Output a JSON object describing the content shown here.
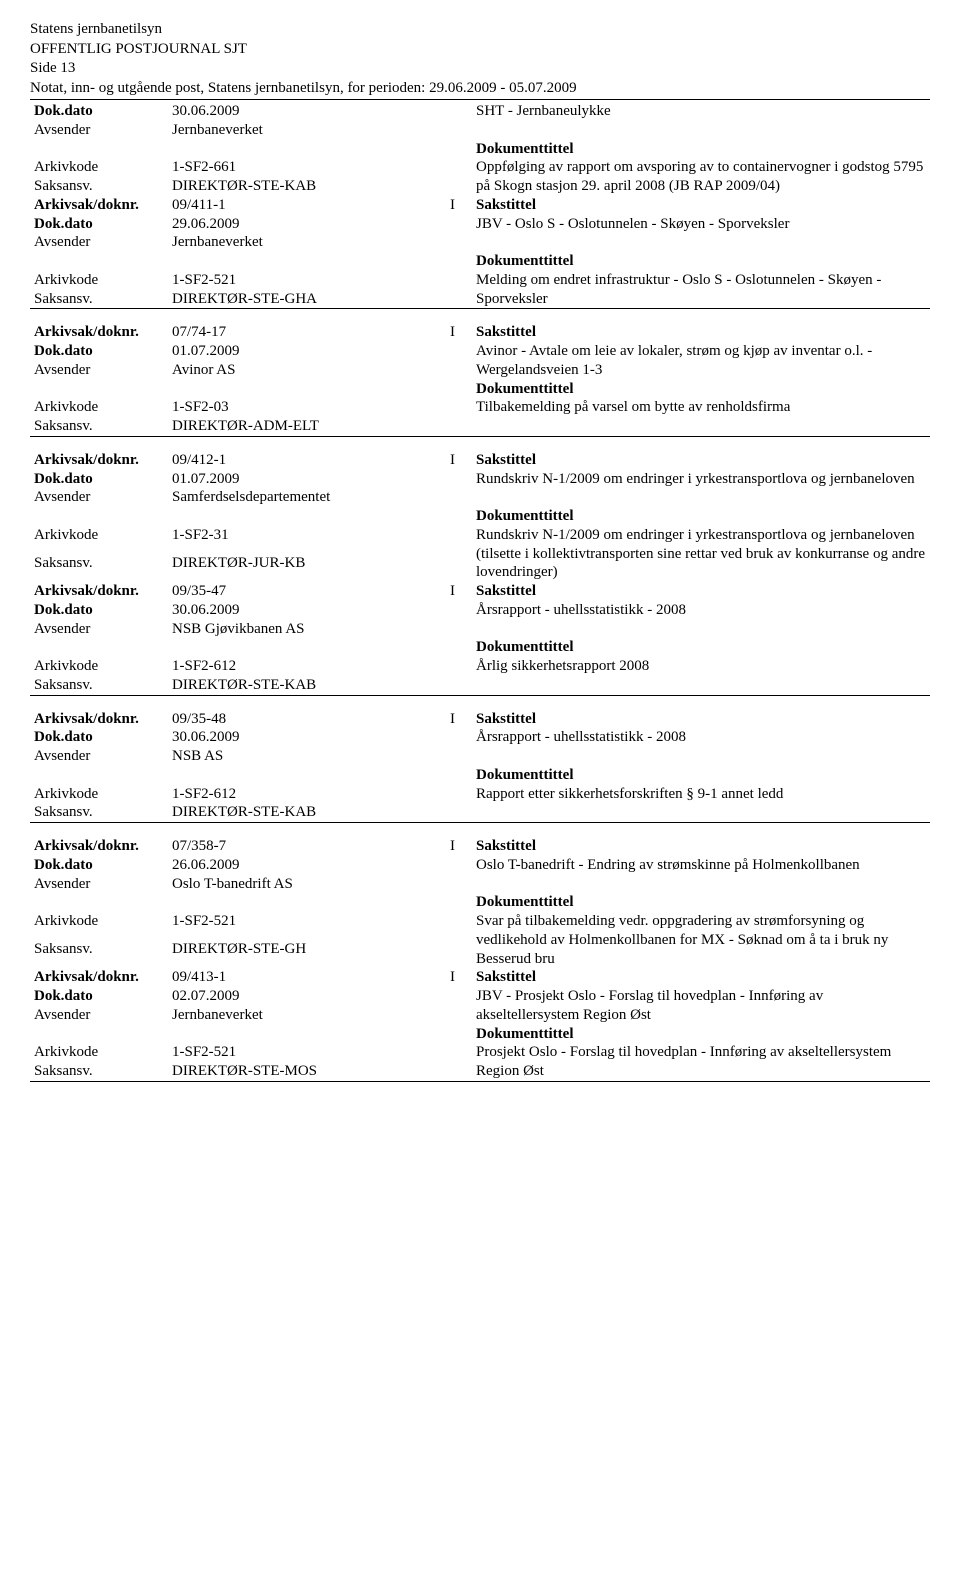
{
  "header": {
    "org": "Statens jernbanetilsyn",
    "title": "OFFENTLIG POSTJOURNAL SJT",
    "page": "Side 13",
    "period": "Notat, inn- og utgående post, Statens jernbanetilsyn, for perioden: 29.06.2009 - 05.07.2009"
  },
  "labels": {
    "dokdato": "Dok.dato",
    "avsender": "Avsender",
    "arkivkode": "Arkivkode",
    "saksansv": "Saksansv.",
    "arkivsak": "Arkivsak/doknr.",
    "sakstittel": "Sakstittel",
    "dokumenttittel": "Dokumenttittel"
  },
  "groups": [
    {
      "top": {
        "dokdato": "30.06.2009",
        "avsender": "Jernbaneverket",
        "arkivkode": "1-SF2-661",
        "saksansv": "DIREKTØR-STE-KAB",
        "saks_text": "SHT - Jernbaneulykke",
        "dok_text": "Oppfølging av rapport om avsporing av to containervogner i godstog 5795 på Skogn stasjon 29. april 2008 (JB RAP 2009/04)"
      },
      "bottom": {
        "arkivsak": "09/411-1",
        "io": "I",
        "dokdato": "29.06.2009",
        "avsender": "Jernbaneverket",
        "arkivkode": "1-SF2-521",
        "saksansv": "DIREKTØR-STE-GHA",
        "saks_text": "JBV - Oslo S - Oslotunnelen - Skøyen - Sporveksler",
        "dok_text": "Melding om endret infrastruktur - Oslo S - Oslotunnelen - Skøyen - Sporveksler"
      }
    },
    {
      "top": {
        "arkivsak": "07/74-17",
        "io": "I",
        "dokdato": "01.07.2009",
        "avsender": "Avinor AS",
        "arkivkode": "1-SF2-03",
        "saksansv": "DIREKTØR-ADM-ELT",
        "saks_text": "Avinor - Avtale om leie av lokaler, strøm og kjøp av inventar o.l. - Wergelandsveien 1-3",
        "dok_text": "Tilbakemelding på varsel om bytte av renholdsfirma"
      }
    },
    {
      "top": {
        "arkivsak": "09/412-1",
        "io": "I",
        "dokdato": "01.07.2009",
        "avsender": "Samferdselsdepartementet",
        "arkivkode": "1-SF2-31",
        "saksansv": "DIREKTØR-JUR-KB",
        "saks_text": "Rundskriv N-1/2009 om endringer i yrkestransportlova og jernbaneloven",
        "dok_text": "Rundskriv N-1/2009 om endringer i yrkestransportlova og jernbaneloven (tilsette i kollektivtransporten sine rettar ved bruk av konkurranse og andre lovendringer)"
      },
      "bottom": {
        "arkivsak": "09/35-47",
        "io": "I",
        "dokdato": "30.06.2009",
        "avsender": "NSB Gjøvikbanen AS",
        "arkivkode": "1-SF2-612",
        "saksansv": "DIREKTØR-STE-KAB",
        "saks_text": "Årsrapport - uhellsstatistikk - 2008",
        "dok_text": "Årlig sikkerhetsrapport 2008"
      }
    },
    {
      "top": {
        "arkivsak": "09/35-48",
        "io": "I",
        "dokdato": "30.06.2009",
        "avsender": "NSB AS",
        "arkivkode": "1-SF2-612",
        "saksansv": "DIREKTØR-STE-KAB",
        "saks_text": "Årsrapport - uhellsstatistikk - 2008",
        "dok_text": "Rapport etter sikkerhetsforskriften § 9-1 annet ledd"
      }
    },
    {
      "top": {
        "arkivsak": "07/358-7",
        "io": "I",
        "dokdato": "26.06.2009",
        "avsender": "Oslo T-banedrift AS",
        "arkivkode": "1-SF2-521",
        "saksansv": "DIREKTØR-STE-GH",
        "saks_text": "Oslo T-banedrift - Endring av strømskinne på Holmenkollbanen",
        "dok_text": "Svar på tilbakemelding vedr. oppgradering av strømforsyning og vedlikehold av Holmenkollbanen for MX - Søknad om å ta i bruk ny Besserud bru"
      },
      "bottom": {
        "arkivsak": "09/413-1",
        "io": "I",
        "dokdato": "02.07.2009",
        "avsender": "Jernbaneverket",
        "arkivkode": "1-SF2-521",
        "saksansv": "DIREKTØR-STE-MOS",
        "saks_text": "JBV - Prosjekt Oslo - Forslag til hovedplan - Innføring av akseltellersystem Region Øst",
        "dok_text": "Prosjekt Oslo - Forslag til hovedplan - Innføring av akseltellersystem Region Øst"
      }
    }
  ]
}
